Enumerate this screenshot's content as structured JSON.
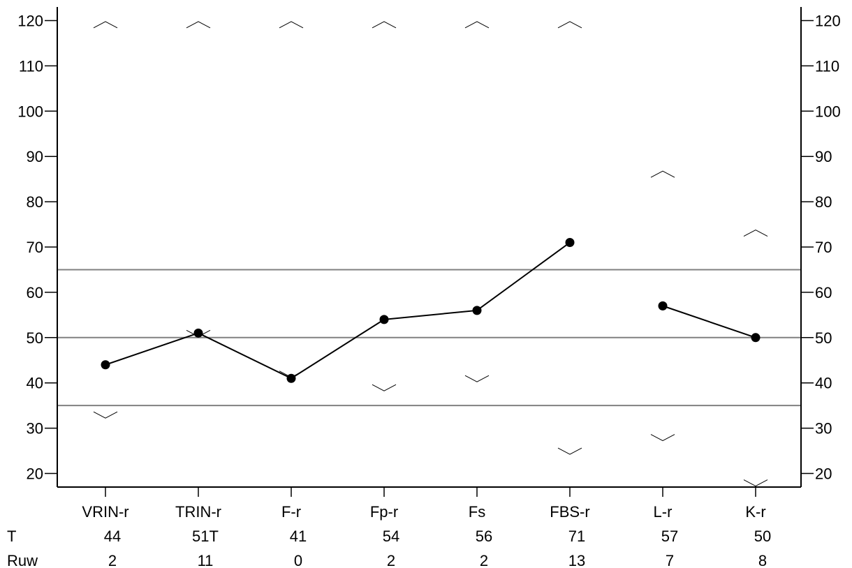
{
  "chart_data": {
    "type": "line",
    "title": "",
    "xlabel": "",
    "ylabel": "",
    "ylim": [
      17,
      123
    ],
    "yticks": [
      20,
      30,
      40,
      50,
      60,
      70,
      80,
      90,
      100,
      110,
      120
    ],
    "yticks_right": true,
    "grid": false,
    "categories": [
      "VRIN-r",
      "TRIN-r",
      "F-r",
      "Fp-r",
      "Fs",
      "FBS-r",
      "L-r",
      "K-r"
    ],
    "series": [
      {
        "values": [
          44,
          51,
          41,
          54,
          56,
          71,
          null,
          null
        ]
      },
      {
        "values": [
          null,
          null,
          null,
          null,
          null,
          null,
          57,
          50
        ]
      }
    ],
    "reference_lines": [
      35,
      50,
      65
    ],
    "range_markers": {
      "upper": [
        119,
        119,
        119,
        119,
        119,
        119,
        86,
        73
      ],
      "lower": [
        33,
        51,
        42,
        39,
        41,
        25,
        28,
        18
      ]
    },
    "rows": [
      {
        "label": "T",
        "values": [
          "44",
          "51T",
          "41",
          "54",
          "56",
          "71",
          "57",
          "50"
        ]
      },
      {
        "label": "Ruw",
        "values": [
          "2",
          "11",
          "0",
          "2",
          "2",
          "13",
          "7",
          "8"
        ]
      }
    ]
  }
}
